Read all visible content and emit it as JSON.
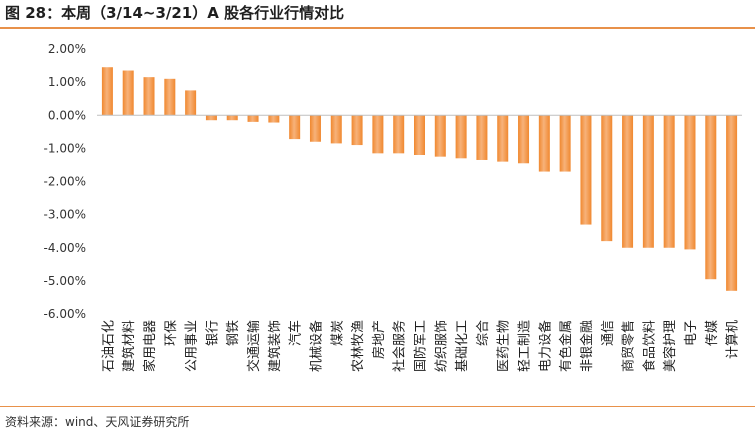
{
  "header": {
    "title": "图 28：本周（3/14~3/21）A 股各行业行情对比"
  },
  "footer": {
    "source": "资料来源：wind、天风证券研究所"
  },
  "colors": {
    "bar": "#F0882F",
    "bar_shade": "#F7B27A",
    "rule": "#E8914A",
    "axis": "#BFBFBF"
  },
  "chart_data": {
    "type": "bar",
    "title": "",
    "xlabel": "",
    "ylabel": "",
    "ylim": [
      -6.0,
      2.0
    ],
    "yticks": [
      "2.00%",
      "1.00%",
      "0.00%",
      "-1.00%",
      "-2.00%",
      "-3.00%",
      "-4.00%",
      "-5.00%",
      "-6.00%"
    ],
    "ytick_values": [
      2,
      1,
      0,
      -1,
      -2,
      -3,
      -4,
      -5,
      -6
    ],
    "categories": [
      "石油石化",
      "建筑材料",
      "家用电器",
      "环保",
      "公用事业",
      "银行",
      "钢铁",
      "交通运输",
      "建筑装饰",
      "汽车",
      "机械设备",
      "煤炭",
      "农林牧渔",
      "房地产",
      "社会服务",
      "国防军工",
      "纺织服饰",
      "基础化工",
      "综合",
      "医药生物",
      "轻工制造",
      "电力设备",
      "有色金属",
      "非银金融",
      "通信",
      "商贸零售",
      "食品饮料",
      "美容护理",
      "电子",
      "传媒",
      "计算机"
    ],
    "values": [
      1.45,
      1.35,
      1.15,
      1.1,
      0.75,
      -0.15,
      -0.15,
      -0.2,
      -0.22,
      -0.72,
      -0.8,
      -0.85,
      -0.9,
      -1.15,
      -1.15,
      -1.2,
      -1.25,
      -1.3,
      -1.35,
      -1.4,
      -1.45,
      -1.7,
      -1.7,
      -3.3,
      -3.8,
      -4.0,
      -4.0,
      -4.0,
      -4.05,
      -4.95,
      -5.3
    ]
  }
}
